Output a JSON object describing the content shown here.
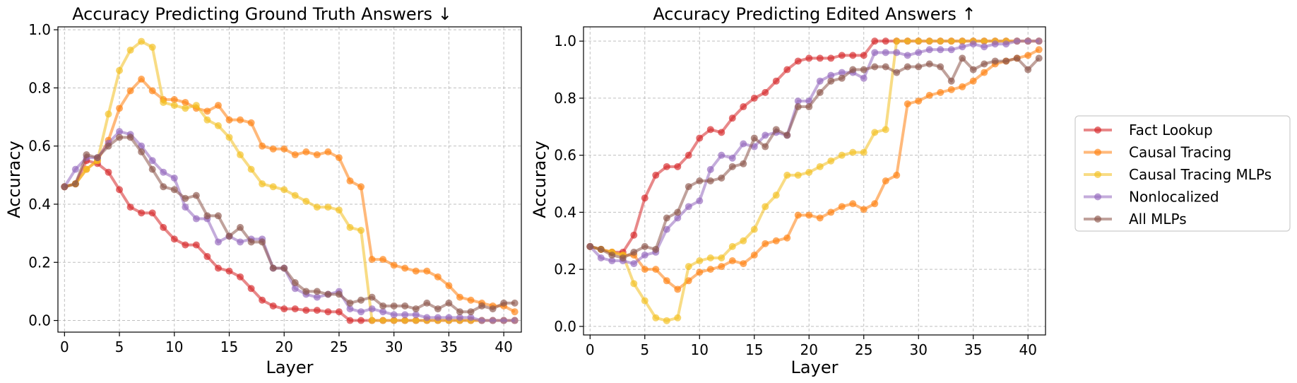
{
  "chart_data": [
    {
      "type": "line",
      "title": "Accuracy Predicting Ground Truth Answers ↓",
      "xlabel": "Layer",
      "ylabel": "Accuracy",
      "xlim": [
        -0.6,
        41.6
      ],
      "ylim": [
        -0.04,
        1.01
      ],
      "xticks": [
        0,
        5,
        10,
        15,
        20,
        25,
        30,
        35,
        40
      ],
      "yticks": [
        0.0,
        0.2,
        0.4,
        0.6,
        0.8,
        1.0
      ],
      "ytick_labels": [
        "0.0",
        "0.2",
        "0.4",
        "0.6",
        "0.8",
        "1.0"
      ],
      "grid": true,
      "x": [
        0,
        1,
        2,
        3,
        4,
        5,
        6,
        7,
        8,
        9,
        10,
        11,
        12,
        13,
        14,
        15,
        16,
        17,
        18,
        19,
        20,
        21,
        22,
        23,
        24,
        25,
        26,
        27,
        28,
        29,
        30,
        31,
        32,
        33,
        34,
        35,
        36,
        37,
        38,
        39,
        40,
        41
      ],
      "series": [
        {
          "name": "Fact Lookup",
          "values": [
            0.46,
            0.47,
            0.55,
            0.54,
            0.51,
            0.45,
            0.39,
            0.37,
            0.37,
            0.32,
            0.28,
            0.26,
            0.26,
            0.22,
            0.18,
            0.17,
            0.15,
            0.11,
            0.07,
            0.05,
            0.04,
            0.04,
            0.035,
            0.035,
            0.03,
            0.03,
            0.0,
            0.0,
            0.0,
            0.0,
            0.0,
            0.0,
            0.0,
            0.0,
            0.0,
            0.0,
            0.0,
            0.0,
            0.0,
            0.0,
            0.0,
            0.0
          ]
        },
        {
          "name": "Causal Tracing",
          "values": [
            0.46,
            0.47,
            0.52,
            0.55,
            0.62,
            0.73,
            0.79,
            0.83,
            0.79,
            0.76,
            0.76,
            0.75,
            0.73,
            0.72,
            0.74,
            0.69,
            0.69,
            0.68,
            0.6,
            0.59,
            0.59,
            0.57,
            0.58,
            0.57,
            0.58,
            0.56,
            0.48,
            0.46,
            0.21,
            0.21,
            0.19,
            0.18,
            0.17,
            0.17,
            0.15,
            0.12,
            0.08,
            0.07,
            0.06,
            0.05,
            0.05,
            0.03
          ]
        },
        {
          "name": "Causal Tracing MLPs",
          "values": [
            0.46,
            0.47,
            0.52,
            0.55,
            0.71,
            0.86,
            0.93,
            0.96,
            0.94,
            0.75,
            0.74,
            0.73,
            0.74,
            0.69,
            0.67,
            0.63,
            0.57,
            0.52,
            0.47,
            0.46,
            0.45,
            0.43,
            0.41,
            0.39,
            0.39,
            0.38,
            0.32,
            0.31,
            0.0,
            0.0,
            0.0,
            0.0,
            0.0,
            0.0,
            0.0,
            0.0,
            0.0,
            0.0,
            0.0,
            0.0,
            0.0,
            0.0
          ]
        },
        {
          "name": "Nonlocalized",
          "values": [
            0.46,
            0.52,
            0.56,
            0.56,
            0.61,
            0.65,
            0.64,
            0.6,
            0.55,
            0.51,
            0.49,
            0.39,
            0.35,
            0.35,
            0.27,
            0.29,
            0.27,
            0.28,
            0.28,
            0.18,
            0.18,
            0.11,
            0.09,
            0.08,
            0.09,
            0.1,
            0.04,
            0.03,
            0.04,
            0.03,
            0.02,
            0.02,
            0.02,
            0.01,
            0.01,
            0.01,
            0.01,
            0.01,
            0.0,
            0.0,
            0.0,
            0.0
          ]
        },
        {
          "name": "All MLPs",
          "values": [
            0.46,
            0.47,
            0.57,
            0.56,
            0.6,
            0.63,
            0.63,
            0.58,
            0.52,
            0.46,
            0.45,
            0.42,
            0.43,
            0.36,
            0.36,
            0.29,
            0.32,
            0.27,
            0.27,
            0.18,
            0.18,
            0.13,
            0.1,
            0.1,
            0.09,
            0.09,
            0.06,
            0.07,
            0.08,
            0.05,
            0.05,
            0.05,
            0.04,
            0.06,
            0.04,
            0.06,
            0.03,
            0.03,
            0.05,
            0.04,
            0.06,
            0.06
          ]
        }
      ]
    },
    {
      "type": "line",
      "title": "Accuracy Predicting Edited Answers ↑",
      "xlabel": "Layer",
      "ylabel": "Accuracy",
      "xlim": [
        -0.6,
        41.6
      ],
      "ylim": [
        -0.03,
        1.05
      ],
      "xticks": [
        0,
        5,
        10,
        15,
        20,
        25,
        30,
        35,
        40
      ],
      "yticks": [
        0.0,
        0.2,
        0.4,
        0.6,
        0.8,
        1.0
      ],
      "ytick_labels": [
        "0.0",
        "0.2",
        "0.4",
        "0.6",
        "0.8",
        "1.0"
      ],
      "grid": true,
      "x": [
        0,
        1,
        2,
        3,
        4,
        5,
        6,
        7,
        8,
        9,
        10,
        11,
        12,
        13,
        14,
        15,
        16,
        17,
        18,
        19,
        20,
        21,
        22,
        23,
        24,
        25,
        26,
        27,
        28,
        29,
        30,
        31,
        32,
        33,
        34,
        35,
        36,
        37,
        38,
        39,
        40,
        41
      ],
      "series": [
        {
          "name": "Fact Lookup",
          "values": [
            0.28,
            0.27,
            0.26,
            0.26,
            0.32,
            0.45,
            0.53,
            0.56,
            0.56,
            0.6,
            0.66,
            0.69,
            0.68,
            0.73,
            0.77,
            0.8,
            0.82,
            0.86,
            0.9,
            0.93,
            0.94,
            0.94,
            0.94,
            0.95,
            0.95,
            0.95,
            1.0,
            1.0,
            1.0,
            1.0,
            1.0,
            1.0,
            1.0,
            1.0,
            1.0,
            1.0,
            1.0,
            1.0,
            1.0,
            1.0,
            1.0,
            1.0
          ]
        },
        {
          "name": "Causal Tracing",
          "values": [
            0.28,
            0.27,
            0.26,
            0.25,
            0.25,
            0.2,
            0.2,
            0.16,
            0.13,
            0.16,
            0.19,
            0.2,
            0.21,
            0.23,
            0.22,
            0.25,
            0.29,
            0.3,
            0.31,
            0.39,
            0.39,
            0.38,
            0.4,
            0.42,
            0.43,
            0.41,
            0.43,
            0.51,
            0.53,
            0.78,
            0.79,
            0.81,
            0.82,
            0.83,
            0.84,
            0.86,
            0.89,
            0.92,
            0.93,
            0.94,
            0.95,
            0.97
          ]
        },
        {
          "name": "Causal Tracing MLPs",
          "values": [
            0.28,
            0.27,
            0.26,
            0.25,
            0.15,
            0.09,
            0.03,
            0.02,
            0.03,
            0.21,
            0.23,
            0.24,
            0.24,
            0.28,
            0.3,
            0.34,
            0.42,
            0.46,
            0.53,
            0.53,
            0.54,
            0.56,
            0.58,
            0.6,
            0.61,
            0.61,
            0.68,
            0.69,
            1.0,
            1.0,
            1.0,
            1.0,
            1.0,
            1.0,
            1.0,
            1.0,
            1.0,
            1.0,
            1.0,
            1.0,
            1.0,
            1.0
          ]
        },
        {
          "name": "Nonlocalized",
          "values": [
            0.28,
            0.24,
            0.23,
            0.23,
            0.22,
            0.25,
            0.26,
            0.34,
            0.38,
            0.42,
            0.44,
            0.55,
            0.6,
            0.59,
            0.64,
            0.63,
            0.67,
            0.68,
            0.67,
            0.79,
            0.79,
            0.86,
            0.88,
            0.89,
            0.89,
            0.87,
            0.96,
            0.96,
            0.96,
            0.95,
            0.96,
            0.97,
            0.97,
            0.97,
            0.98,
            0.99,
            0.98,
            0.99,
            0.99,
            1.0,
            1.0,
            1.0
          ]
        },
        {
          "name": "All MLPs",
          "values": [
            0.28,
            0.27,
            0.25,
            0.24,
            0.26,
            0.28,
            0.27,
            0.38,
            0.4,
            0.49,
            0.51,
            0.51,
            0.52,
            0.56,
            0.57,
            0.66,
            0.63,
            0.69,
            0.67,
            0.77,
            0.77,
            0.82,
            0.86,
            0.87,
            0.9,
            0.9,
            0.91,
            0.91,
            0.89,
            0.91,
            0.91,
            0.92,
            0.91,
            0.86,
            0.94,
            0.9,
            0.92,
            0.93,
            0.93,
            0.94,
            0.9,
            0.94
          ]
        }
      ]
    }
  ],
  "legend": {
    "placement": "right",
    "entries": [
      "Fact Lookup",
      "Causal Tracing",
      "Causal Tracing MLPs",
      "Nonlocalized",
      "All MLPs"
    ]
  },
  "series_colors": {
    "Fact Lookup": "#d62728",
    "Causal Tracing": "#ff7f0e",
    "Causal Tracing MLPs": "#f2c021",
    "Nonlocalized": "#9467bd",
    "All MLPs": "#8c564b"
  }
}
